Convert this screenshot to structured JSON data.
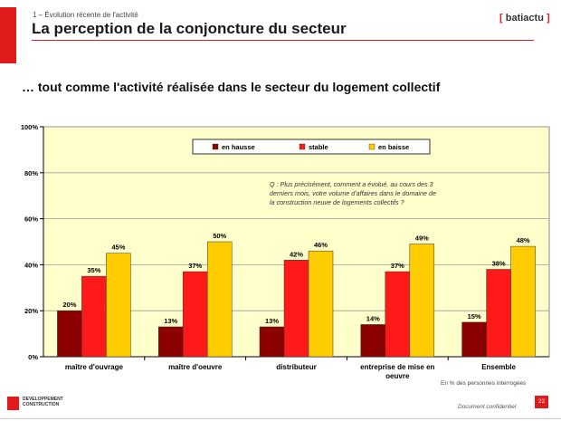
{
  "header": {
    "section": "1 – Évolution récente de l'activité",
    "title": "La perception de la conjoncture du secteur",
    "brand": "batiactu",
    "brand_open": "[",
    "brand_close": "]"
  },
  "headline": "… tout comme l'activité réalisée dans le secteur du logement collectif",
  "chart_data": {
    "type": "bar",
    "categories": [
      "maître d'ouvrage",
      "maître d'oeuvre",
      "distributeur",
      "entreprise de mise en oeuvre",
      "Ensemble"
    ],
    "category_lines": [
      [
        "maître d'ouvrage"
      ],
      [
        "maître d'oeuvre"
      ],
      [
        "distributeur"
      ],
      [
        "entreprise de mise en",
        "oeuvre"
      ],
      [
        "Ensemble"
      ]
    ],
    "series": [
      {
        "name": "en hausse",
        "values": [
          20,
          13,
          13,
          14,
          15
        ],
        "labels": [
          "20%",
          "13%",
          "13%",
          "14%",
          "15%"
        ],
        "color": "#8b0000"
      },
      {
        "name": "stable",
        "values": [
          35,
          37,
          42,
          37,
          38
        ],
        "labels": [
          "35%",
          "37%",
          "42%",
          "37%",
          "38%"
        ],
        "color": "#ff1a1a"
      },
      {
        "name": "en baisse",
        "values": [
          45,
          50,
          46,
          49,
          48
        ],
        "labels": [
          "45%",
          "50%",
          "46%",
          "49%",
          "48%"
        ],
        "color": "#ffcc00"
      }
    ],
    "ylim": [
      0,
      100
    ],
    "yticks": [
      0,
      20,
      40,
      60,
      80,
      100
    ],
    "ytick_labels": [
      "0%",
      "20%",
      "40%",
      "60%",
      "80%",
      "100%"
    ],
    "legend": "top-center",
    "grid": true,
    "annotation": "Q : Plus précisément, comment a évolué, au cours des 3 derniers mois, votre volume d'affaires dans le domaine de la construction neuve de logements collectifs ?",
    "annotation_lines": [
      "Q : Plus précisément, comment a évolué, au cours des 3",
      "derniers mois, votre volume d'affaires dans le domaine de",
      "la construction neuve de logements collectifs ?"
    ]
  },
  "note": "En % des personnes interrogées",
  "footer": {
    "logo_line1": "DEVELOPPEMENT",
    "logo_line2": "CONSTRUCTION",
    "confidential": "Document confidentiel",
    "page": "22"
  },
  "colors": {
    "accent": "#e01b1b",
    "plot_bg": "#ffffcc"
  }
}
